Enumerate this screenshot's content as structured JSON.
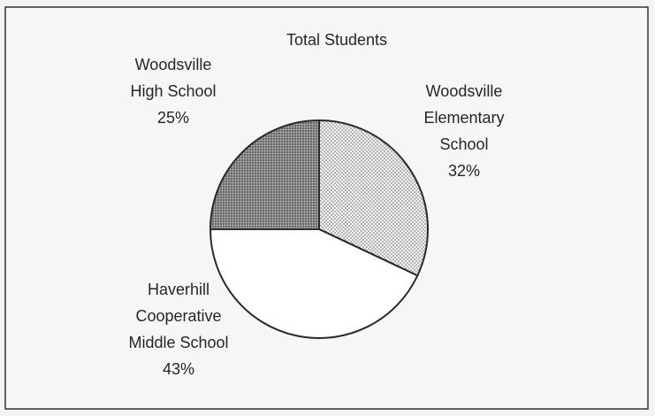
{
  "chart_data": {
    "type": "pie",
    "title": "Total Students",
    "slices": [
      {
        "name": "Woodsville Elementary School",
        "label_lines": [
          "Woodsville",
          "Elementary",
          "School",
          "32%"
        ],
        "value": 32,
        "label": "32%",
        "pattern": "fine-dots",
        "color": "#dadada"
      },
      {
        "name": "Haverhill Cooperative Middle School",
        "label_lines": [
          "Haverhill",
          "Cooperative",
          "Middle School",
          "43%"
        ],
        "value": 43,
        "label": "43%",
        "pattern": "none",
        "color": "#ffffff"
      },
      {
        "name": "Woodsville High School",
        "label_lines": [
          "Woodsville",
          "High School",
          "25%"
        ],
        "value": 25,
        "label": "25%",
        "pattern": "dense-dots",
        "color": "#8a8a8a"
      }
    ],
    "start_angle_deg": 0,
    "direction": "clockwise",
    "legend": "none"
  }
}
